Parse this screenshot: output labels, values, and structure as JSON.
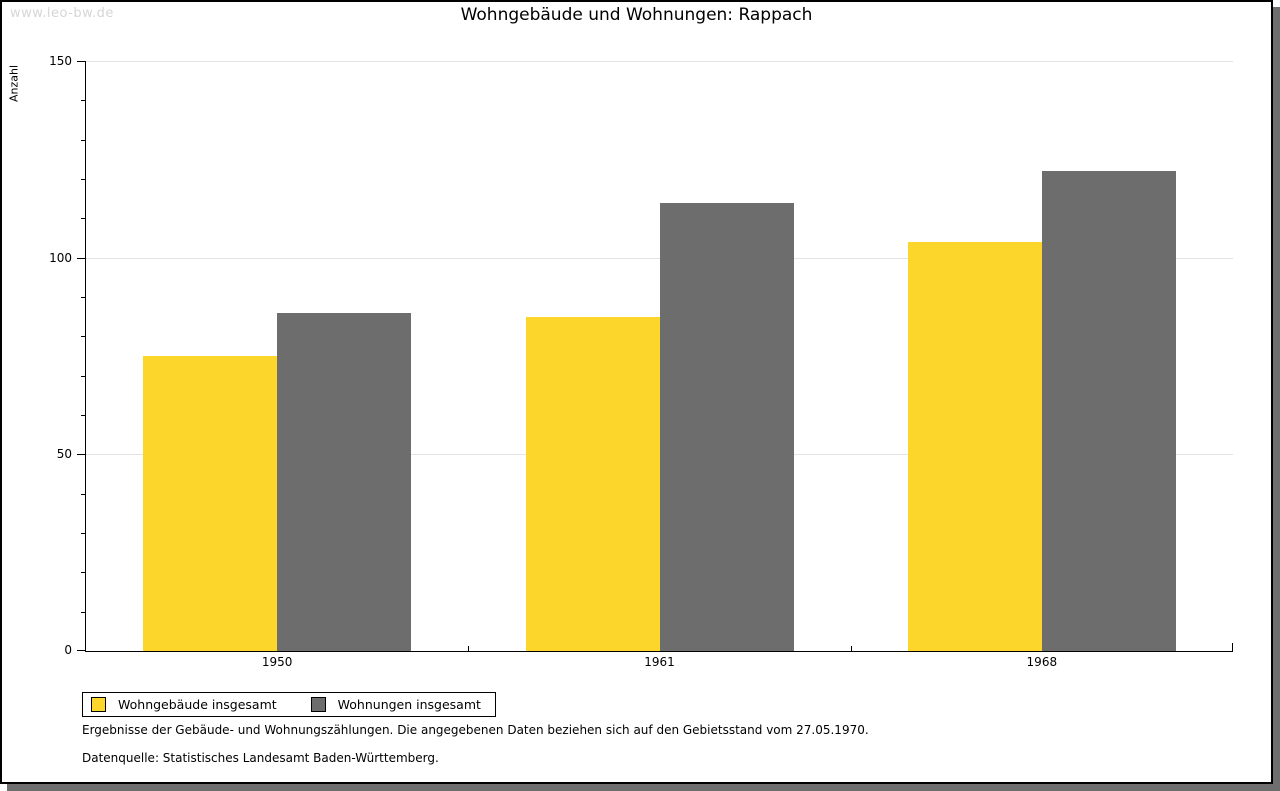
{
  "watermark": "www.leo-bw.de",
  "title": "Wohngebäude und Wohnungen: Rappach",
  "chart_data": {
    "type": "bar",
    "title": "Wohngebäude und Wohnungen: Rappach",
    "categories": [
      "1950",
      "1961",
      "1968"
    ],
    "series": [
      {
        "name": "Wohngebäude insgesamt",
        "color": "#fdd62c",
        "values": [
          75,
          85,
          104
        ]
      },
      {
        "name": "Wohnungen insgesamt",
        "color": "#6e6d6d",
        "values": [
          86,
          114,
          122
        ]
      }
    ],
    "xlabel": "",
    "ylabel": "Anzahl",
    "ylim": [
      0,
      150
    ],
    "yticks_major": [
      0,
      50,
      100,
      150
    ],
    "ytick_minor_step": 10,
    "grid": true,
    "gridline_color": "#e3e3e3",
    "legend_position": "bottom-left"
  },
  "footnotes": {
    "line1": "Ergebnisse der Gebäude- und Wohnungszählungen. Die angegebenen Daten beziehen sich auf den Gebietsstand vom 27.05.1970.",
    "line2": "Datenquelle: Statistisches Landesamt Baden-Württemberg."
  }
}
